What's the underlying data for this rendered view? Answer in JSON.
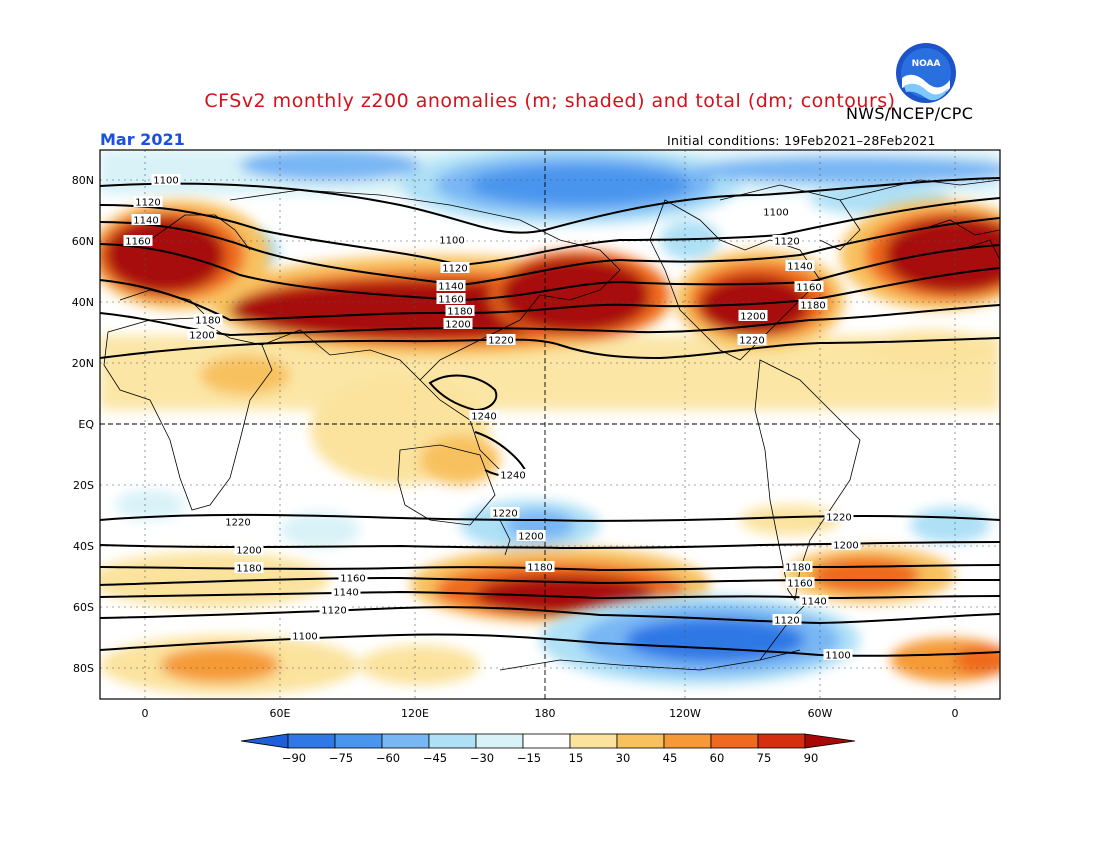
{
  "header": {
    "title": "CFSv2 monthly z200 anomalies (m; shaded) and total (dm; contours)",
    "agency": "NWS/NCEP/CPC",
    "month": "Mar 2021",
    "initial_conditions": "Initial conditions: 19Feb2021–28Feb2021",
    "logo_text": "NOAA"
  },
  "map": {
    "projection": "cylindrical equidistant",
    "lon_range": [
      -20,
      380
    ],
    "lat_range": [
      -90,
      90
    ],
    "lat_tick_labels": [
      "80N",
      "60N",
      "40N",
      "20N",
      "EQ",
      "20S",
      "40S",
      "60S",
      "80S"
    ],
    "lon_tick_labels": [
      "0",
      "60E",
      "120E",
      "180",
      "120W",
      "60W",
      "0"
    ],
    "gridlines": "dashed",
    "colors": {
      "positive_max": "#a00000",
      "negative_max": "#1460d0",
      "contour": "#000000",
      "title": "#d4111b",
      "month": "#1a4fe0"
    }
  },
  "contours": {
    "unit": "dm",
    "labels": [
      {
        "text": "1100"
      },
      {
        "text": "1120"
      },
      {
        "text": "1140"
      },
      {
        "text": "1160"
      },
      {
        "text": "1100"
      },
      {
        "text": "1120"
      },
      {
        "text": "1140"
      },
      {
        "text": "1160"
      },
      {
        "text": "1180"
      },
      {
        "text": "1200"
      },
      {
        "text": "1220"
      },
      {
        "text": "1100"
      },
      {
        "text": "1120"
      },
      {
        "text": "1140"
      },
      {
        "text": "1160"
      },
      {
        "text": "1180"
      },
      {
        "text": "1200"
      },
      {
        "text": "1220"
      },
      {
        "text": "1180"
      },
      {
        "text": "1200"
      },
      {
        "text": "1240"
      },
      {
        "text": "1240"
      },
      {
        "text": "1220"
      },
      {
        "text": "1200"
      },
      {
        "text": "1180"
      },
      {
        "text": "1160"
      },
      {
        "text": "1140"
      },
      {
        "text": "1120"
      },
      {
        "text": "1100"
      },
      {
        "text": "1220"
      },
      {
        "text": "1200"
      },
      {
        "text": "1180"
      },
      {
        "text": "1220"
      },
      {
        "text": "1200"
      },
      {
        "text": "1180"
      },
      {
        "text": "1160"
      },
      {
        "text": "1140"
      },
      {
        "text": "1120"
      },
      {
        "text": "1100"
      }
    ]
  },
  "colorbar": {
    "unit": "m",
    "tick_labels": [
      "-90",
      "-75",
      "-60",
      "-45",
      "-30",
      "-15",
      "15",
      "30",
      "45",
      "60",
      "75",
      "90"
    ],
    "colors": [
      "#1c5fd8",
      "#2f78e6",
      "#4a95ee",
      "#78b6f4",
      "#aee0f6",
      "#d8f2f8",
      "#ffffff",
      "#fbe39e",
      "#f8c15e",
      "#f59a36",
      "#ef6a1e",
      "#d62f10",
      "#a80707"
    ]
  },
  "chart_data": {
    "type": "heatmap",
    "title": "CFSv2 monthly z200 anomalies (m; shaded) and total (dm; contours)",
    "variable": "200 hPa geopotential height anomaly",
    "unit": "m",
    "valid_month": "Mar 2021",
    "levels": [
      -90,
      -75,
      -60,
      -45,
      -30,
      -15,
      15,
      30,
      45,
      60,
      75,
      90
    ],
    "contour_unit": "dm",
    "contour_levels": [
      1100,
      1120,
      1140,
      1160,
      1180,
      1200,
      1220,
      1240
    ]
  }
}
